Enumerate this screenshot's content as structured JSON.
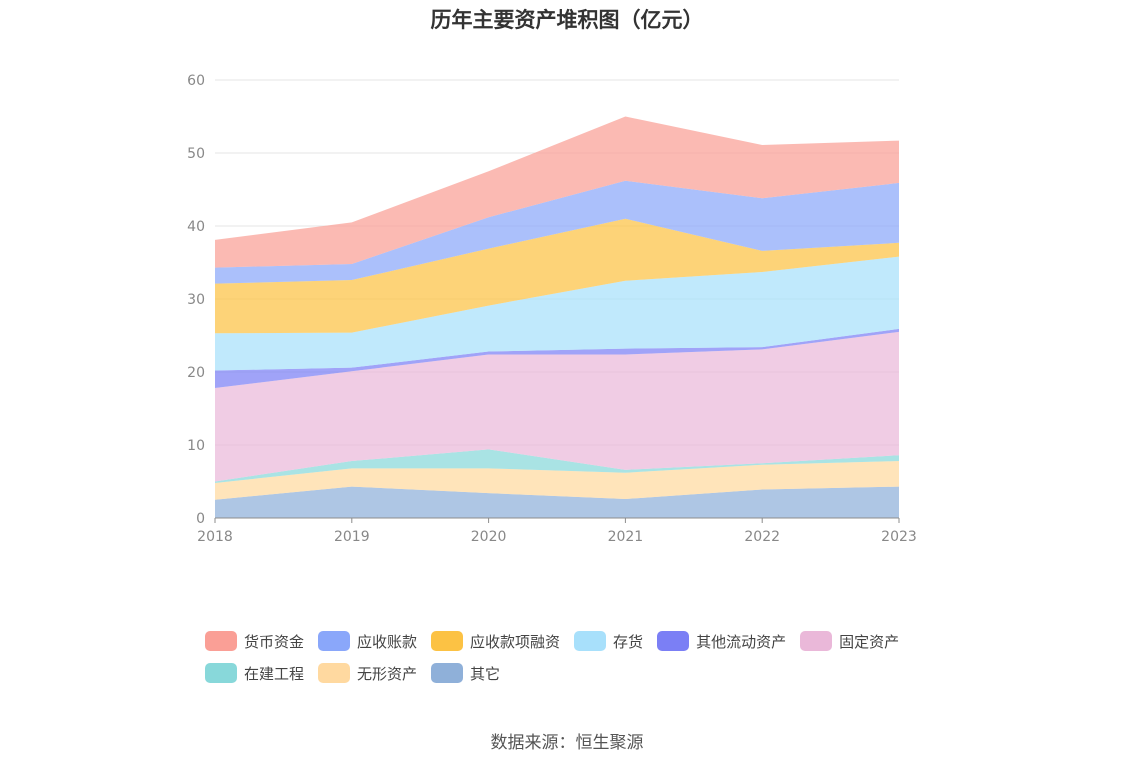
{
  "chart_data": {
    "type": "area",
    "stacked": true,
    "title": "历年主要资产堆积图（亿元）",
    "x": [
      "2018",
      "2019",
      "2020",
      "2021",
      "2022",
      "2023"
    ],
    "ylim": [
      0,
      60
    ],
    "yticks": [
      0,
      10,
      20,
      30,
      40,
      50,
      60
    ],
    "grid": true,
    "legend_position": "bottom",
    "series": [
      {
        "name": "其它",
        "color": "#8fb0d9",
        "values": [
          2.5,
          4.3,
          3.4,
          2.6,
          3.9,
          4.3
        ]
      },
      {
        "name": "无形资产",
        "color": "#ffd9a0",
        "values": [
          2.3,
          2.5,
          3.4,
          3.6,
          3.4,
          3.5
        ]
      },
      {
        "name": "在建工程",
        "color": "#88d8da",
        "values": [
          0.2,
          1.0,
          2.6,
          0.4,
          0.2,
          0.8
        ]
      },
      {
        "name": "固定资产",
        "color": "#eab8d9",
        "values": [
          12.8,
          12.3,
          13.0,
          15.8,
          15.6,
          16.9
        ]
      },
      {
        "name": "其他流动资产",
        "color": "#7b7ff5",
        "values": [
          2.4,
          0.5,
          0.4,
          0.8,
          0.3,
          0.4
        ]
      },
      {
        "name": "存货",
        "color": "#a8e0fb",
        "values": [
          5.1,
          4.8,
          6.3,
          9.3,
          10.3,
          9.9
        ]
      },
      {
        "name": "应收款项融资",
        "color": "#fcc244",
        "values": [
          6.8,
          7.2,
          7.8,
          8.5,
          2.9,
          1.9
        ]
      },
      {
        "name": "应收账款",
        "color": "#8aa7fa",
        "values": [
          2.2,
          2.2,
          4.3,
          5.2,
          7.2,
          8.2
        ]
      },
      {
        "name": "货币资金",
        "color": "#fa9f96",
        "values": [
          3.8,
          5.7,
          6.3,
          8.8,
          7.3,
          5.8
        ]
      }
    ],
    "legend_order": [
      "货币资金",
      "应收账款",
      "应收款项融资",
      "存货",
      "其他流动资产",
      "固定资产",
      "在建工程",
      "无形资产",
      "其它"
    ]
  },
  "source_text": "数据来源：恒生聚源"
}
